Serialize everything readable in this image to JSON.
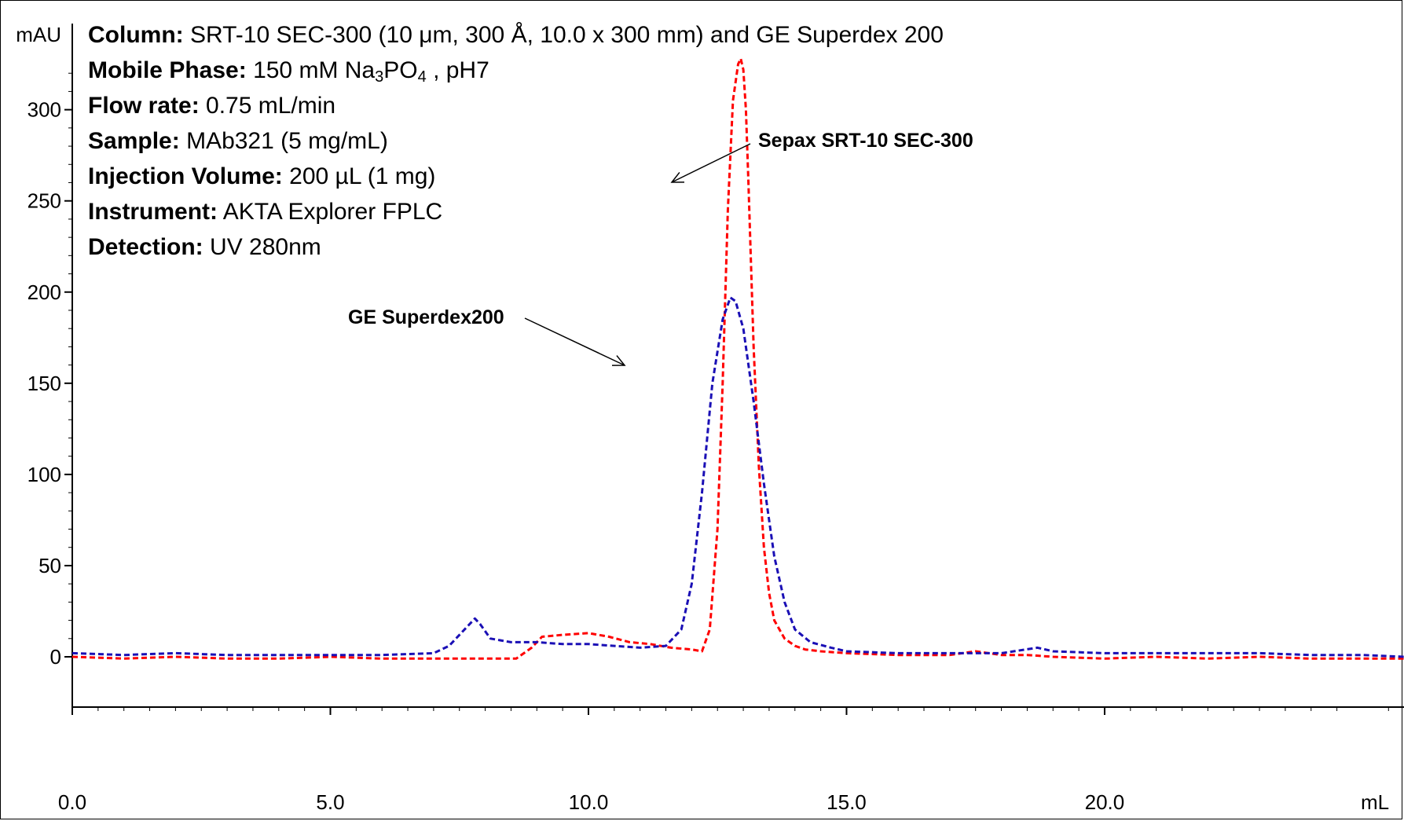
{
  "info": {
    "column_label": "Column:",
    "column_value": "SRT-10 SEC-300 (10 μm, 300 Å, 10.0 x 300 mm) and GE Superdex 200",
    "mobile_phase_label": "Mobile Phase:",
    "mobile_phase_pre": "150 mM Na",
    "mobile_phase_sub1": "3",
    "mobile_phase_mid": "PO",
    "mobile_phase_sub2": "4",
    "mobile_phase_post": " , pH7",
    "flow_rate_label": "Flow rate:",
    "flow_rate_value": "0.75 mL/min",
    "sample_label": "Sample:",
    "sample_value": "MAb321 (5 mg/mL)",
    "injection_label": "Injection Volume:",
    "injection_value": "200 µL (1 mg)",
    "instrument_label": "Instrument:",
    "instrument_value": "AKTA Explorer FPLC",
    "detection_label": "Detection:",
    "detection_value": "UV 280nm"
  },
  "chart_data": {
    "type": "line",
    "ylabel": "mAU",
    "xlabel": "mL",
    "xlim": [
      0,
      25.8
    ],
    "ylim": [
      0,
      330
    ],
    "x_ticks": [
      0,
      5,
      10,
      15,
      20
    ],
    "x_tick_labels": [
      "0.0",
      "5.0",
      "10.0",
      "15.0",
      "20.0"
    ],
    "y_ticks": [
      0,
      50,
      100,
      150,
      200,
      250,
      300
    ],
    "y_tick_labels": [
      "0",
      "50",
      "100",
      "150",
      "200",
      "250",
      "300"
    ],
    "grid": false,
    "series": [
      {
        "name": "Sepax SRT-10 SEC-300",
        "color": "#ff0000",
        "dash": "dashed",
        "x": [
          0,
          1,
          2,
          3,
          4,
          5,
          6,
          7,
          8,
          8.6,
          8.9,
          9.1,
          9.5,
          10.0,
          10.4,
          10.8,
          11.2,
          11.6,
          12.0,
          12.2,
          12.35,
          12.5,
          12.6,
          12.7,
          12.8,
          12.9,
          12.95,
          13.0,
          13.05,
          13.1,
          13.2,
          13.3,
          13.4,
          13.5,
          13.6,
          13.8,
          14.0,
          14.2,
          14.5,
          15.0,
          16.0,
          17.0,
          17.5,
          18.0,
          18.5,
          19.0,
          20.0,
          21.0,
          22.0,
          23.0,
          24.0,
          25.0,
          25.8
        ],
        "y": [
          0,
          -1,
          0,
          -1,
          -1,
          0,
          -1,
          -1,
          -1,
          -1,
          5,
          11,
          12,
          13,
          11,
          8,
          7,
          5,
          4,
          3,
          15,
          70,
          150,
          245,
          305,
          325,
          328,
          322,
          300,
          260,
          170,
          105,
          60,
          35,
          20,
          10,
          6,
          4,
          3,
          2,
          1,
          1,
          3,
          1,
          1,
          0,
          -1,
          0,
          -1,
          0,
          -1,
          -1,
          -1
        ]
      },
      {
        "name": "GE Superdex200",
        "color": "#1a0fb5",
        "dash": "dashed",
        "x": [
          0,
          1,
          2,
          3,
          4,
          5,
          6,
          7,
          7.3,
          7.6,
          7.8,
          7.9,
          8.1,
          8.5,
          9.0,
          9.5,
          10.0,
          10.5,
          11.0,
          11.5,
          11.8,
          12.0,
          12.2,
          12.4,
          12.6,
          12.75,
          12.85,
          13.0,
          13.2,
          13.4,
          13.6,
          13.8,
          14.0,
          14.3,
          14.7,
          15.0,
          16.0,
          17.0,
          18.0,
          18.7,
          19.0,
          20.0,
          21.0,
          22.0,
          23.0,
          24.0,
          25.0,
          25.8
        ],
        "y": [
          2,
          1,
          2,
          1,
          1,
          1,
          1,
          2,
          6,
          15,
          21,
          18,
          10,
          8,
          8,
          7,
          7,
          6,
          5,
          6,
          15,
          40,
          90,
          150,
          185,
          197,
          195,
          180,
          140,
          95,
          55,
          30,
          15,
          8,
          5,
          3,
          2,
          2,
          2,
          5,
          3,
          2,
          2,
          2,
          2,
          1,
          1,
          0
        ]
      }
    ],
    "annotations": [
      {
        "text": "Sepax SRT-10 SEC-300"
      },
      {
        "text": "GE Superdex200"
      }
    ]
  }
}
